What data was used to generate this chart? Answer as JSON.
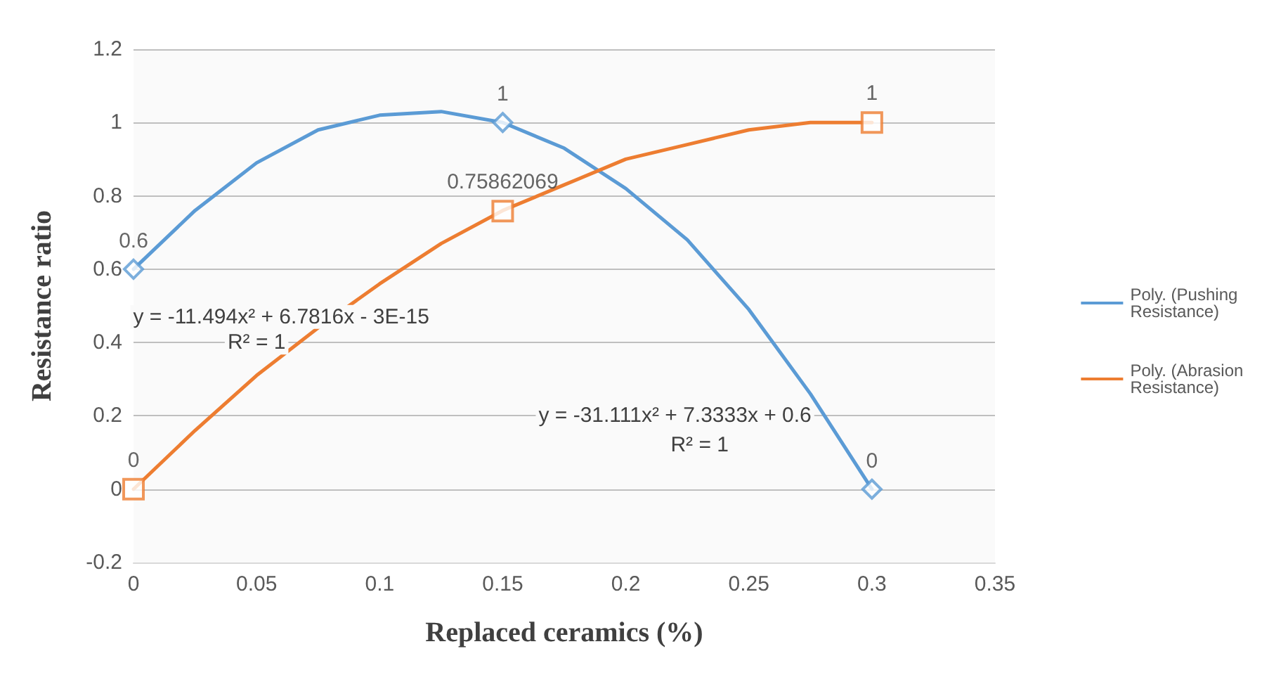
{
  "chart_data": {
    "type": "line",
    "xlabel": "Replaced ceramics (%)",
    "ylabel": "Resistance ratio",
    "xlim": [
      0,
      0.35
    ],
    "xticks": [
      0,
      0.05,
      0.1,
      0.15,
      0.2,
      0.25,
      0.3,
      0.35
    ],
    "ylim": [
      -0.2,
      1.2
    ],
    "yticks": [
      -0.2,
      0,
      0.2,
      0.4,
      0.6,
      0.8,
      1,
      1.2
    ],
    "grid": "y",
    "legend": "right",
    "line_style": "solid",
    "series": [
      {
        "type": "scatter",
        "marker": "diamond",
        "color": "#5b9bd5",
        "x": [
          0,
          0.15,
          0.3
        ],
        "values": [
          0.6,
          1,
          0
        ],
        "value_labels": [
          "0.6",
          "1",
          "0"
        ]
      },
      {
        "type": "scatter",
        "marker": "square",
        "color": "#ed7d31",
        "x": [
          0,
          0.15,
          0.3
        ],
        "values": [
          0,
          0.75862069,
          1
        ],
        "value_labels": [
          "0",
          "0.75862069",
          "1"
        ]
      },
      {
        "name": "Poly. (Pushing Resistance)",
        "color": "#5b9bd5",
        "x": [
          0,
          0.025,
          0.05,
          0.075,
          0.1,
          0.125,
          0.15,
          0.175,
          0.2,
          0.225,
          0.25,
          0.275,
          0.3
        ],
        "values": [
          0.6,
          0.76,
          0.89,
          0.98,
          1.02,
          1.03,
          1,
          0.93,
          0.82,
          0.68,
          0.49,
          0.26,
          0
        ]
      },
      {
        "name": "Poly. (Abrasion Resistance)",
        "color": "#ed7d31",
        "x": [
          0,
          0.025,
          0.05,
          0.075,
          0.1,
          0.125,
          0.15,
          0.175,
          0.2,
          0.225,
          0.25,
          0.275,
          0.3
        ],
        "values": [
          0,
          0.16,
          0.31,
          0.44,
          0.56,
          0.67,
          0.76,
          0.83,
          0.9,
          0.94,
          0.98,
          1,
          1
        ]
      }
    ],
    "annotations": [
      "y = -11.494x² + 6.7816x - 3E-15",
      "R² = 1",
      "y = -31.111x² + 7.3333x + 0.6",
      "R² = 1"
    ]
  }
}
